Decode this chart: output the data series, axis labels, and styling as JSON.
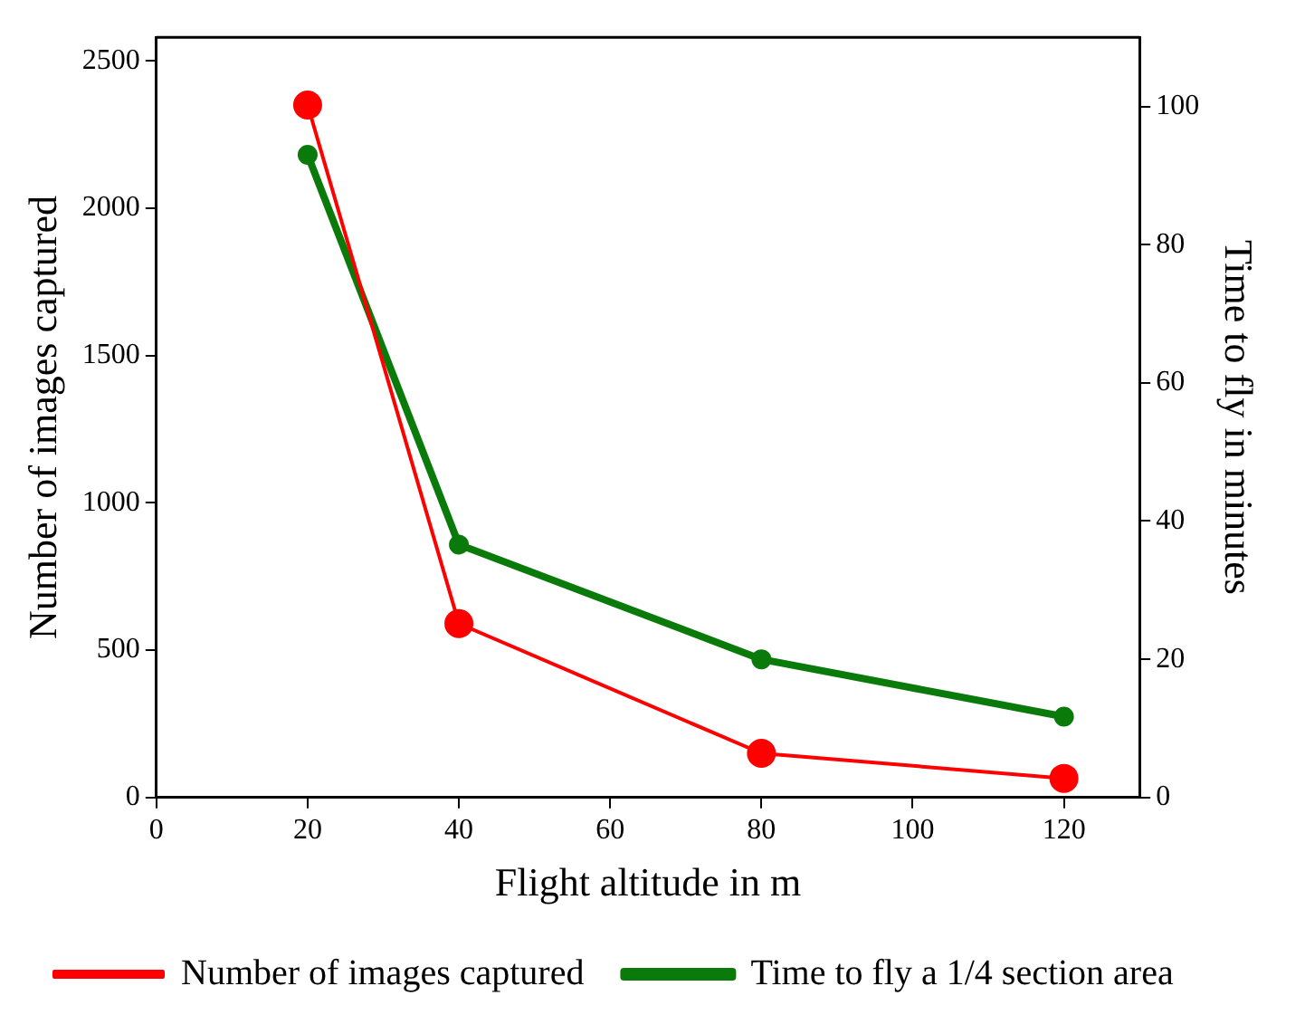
{
  "chart_data": {
    "type": "line",
    "x": [
      20,
      40,
      80,
      120
    ],
    "xlabel": "Flight altitude in m",
    "ylabel": "Number of images captured",
    "y2label": "Time to fly in minutes",
    "series": [
      {
        "name": "Number of images captured",
        "color": "#ff0000",
        "values": [
          2350,
          590,
          150,
          65
        ]
      },
      {
        "name": "Time to fly a 1/4 section area",
        "color": "#0a7a0a",
        "values": [
          93,
          36.6,
          20,
          11.7
        ],
        "axis": "y2"
      }
    ],
    "xlim": [
      0,
      130
    ],
    "xticks": [
      0,
      20,
      40,
      60,
      80,
      100,
      120
    ],
    "ylim": [
      0,
      2580
    ],
    "yticks": [
      0,
      500,
      1000,
      1500,
      2000,
      2500
    ],
    "y2lim": [
      0,
      110
    ],
    "y2ticks": [
      0,
      20,
      40,
      60,
      80,
      100
    ],
    "marker": "circle",
    "line_style": "solid",
    "grid": false,
    "legend": "bottom"
  }
}
